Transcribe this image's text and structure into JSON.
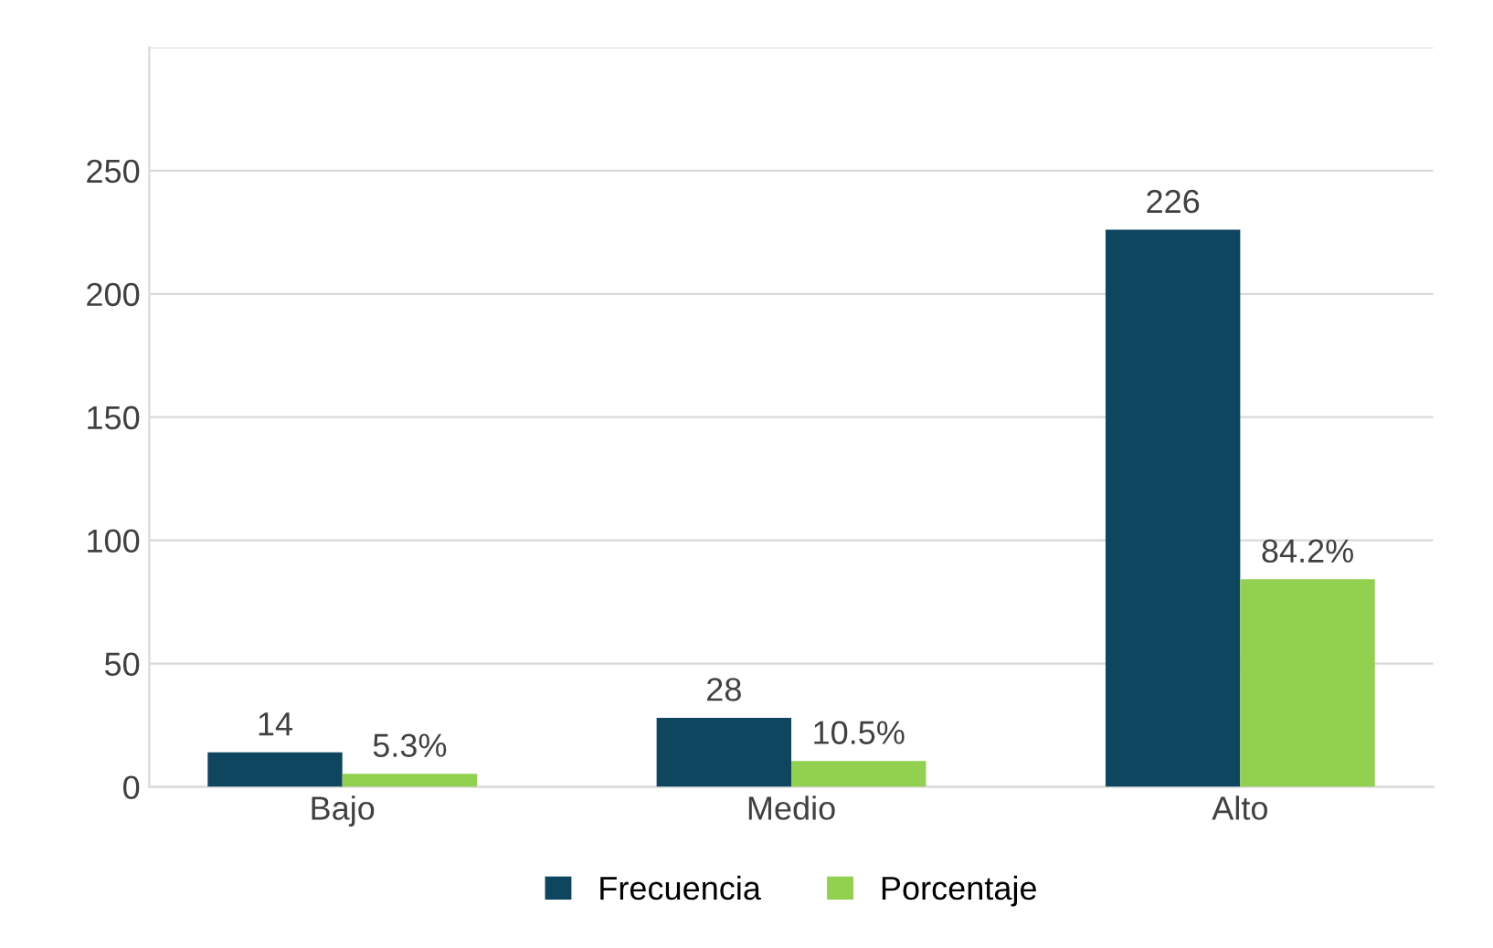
{
  "chart_data": {
    "type": "bar",
    "categories": [
      "Bajo",
      "Medio",
      "Alto"
    ],
    "series": [
      {
        "name": "Frecuencia",
        "color": "#0e4660",
        "values": [
          14,
          28,
          226
        ],
        "value_labels": [
          "14",
          "28",
          "226"
        ]
      },
      {
        "name": "Porcentaje",
        "color": "#92d050",
        "values": [
          5.3,
          10.5,
          84.2
        ],
        "value_labels": [
          "5.3%",
          "10.5%",
          "84.2%"
        ]
      }
    ],
    "ylim": [
      0,
      300
    ],
    "yticks": [
      0,
      50,
      100,
      150,
      200,
      250,
      {
        "value": 300,
        "label": null
      }
    ],
    "grid": "y",
    "legend": "bottom"
  }
}
